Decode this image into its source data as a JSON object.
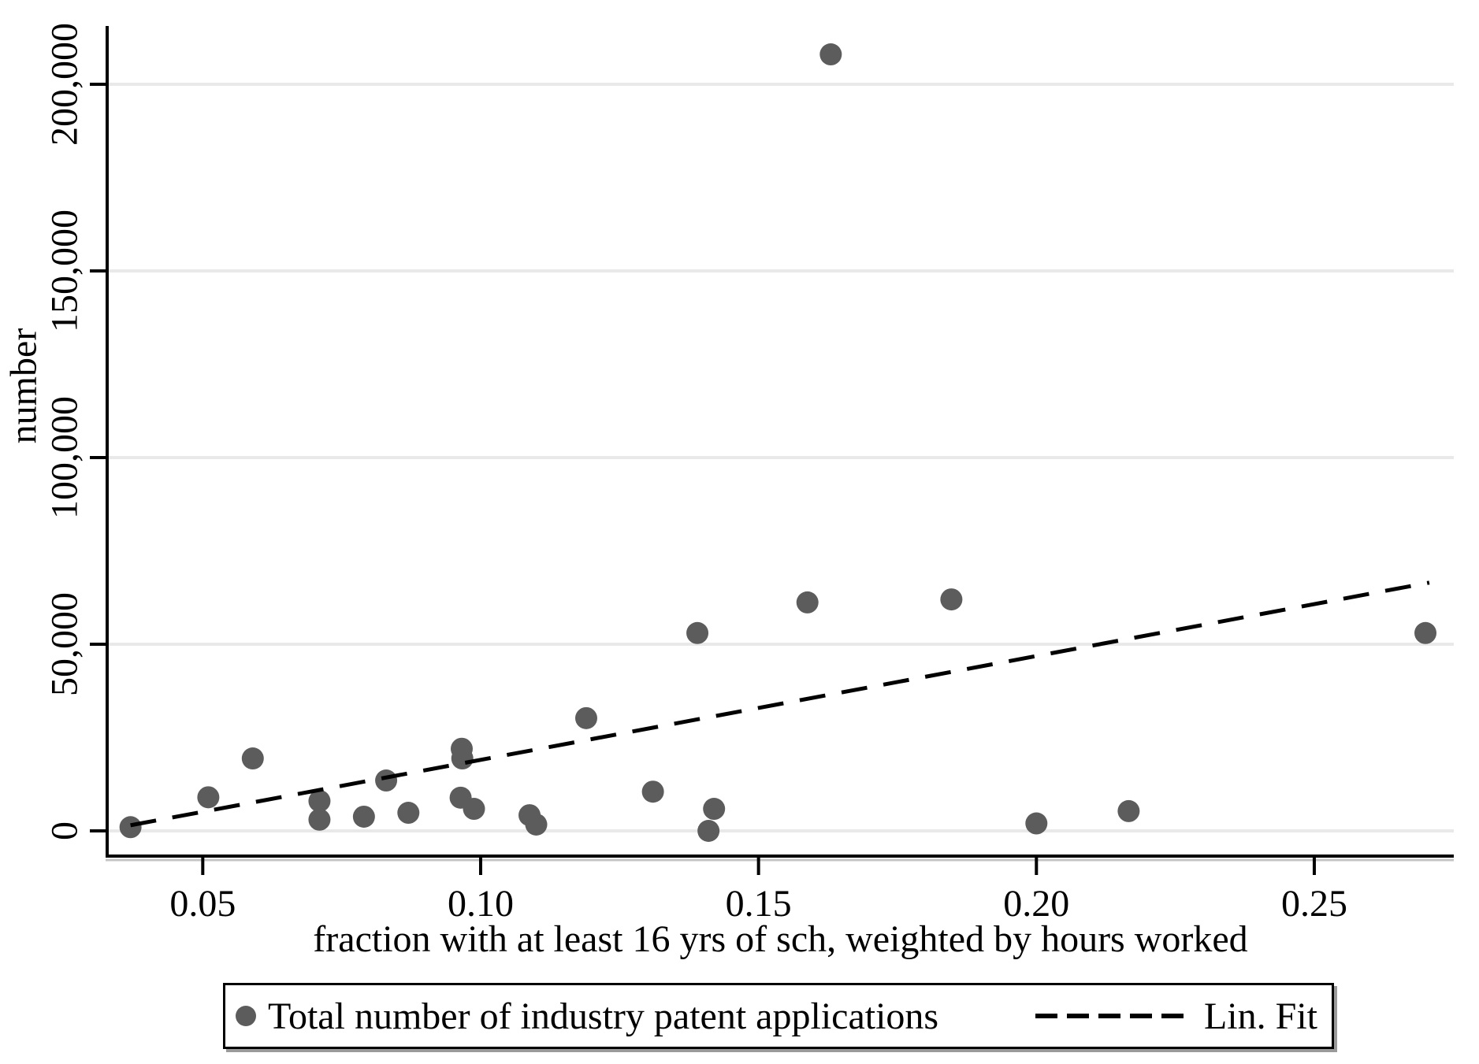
{
  "figure": {
    "background": "#ffffff",
    "marker_color": "#5c5c5c",
    "grid_color": "#e9e9e9",
    "axis_color": "#000000",
    "text_color": "#000000",
    "axis_shadow_color": "#c4c4c4"
  },
  "chart_data": {
    "type": "scatter",
    "title": "",
    "xlabel": "fraction with at least 16 yrs of sch, weighted by hours worked",
    "ylabel": "number",
    "xlim": [
      0.0328,
      0.2751
    ],
    "ylim": [
      -6750,
      215600
    ],
    "grid": "horizontal-y",
    "legend_position": "bottom-outside",
    "x_ticks": {
      "values": [
        0.05,
        0.1,
        0.15,
        0.2,
        0.25
      ],
      "labels": [
        "0.05",
        "0.10",
        "0.15",
        "0.20",
        "0.25"
      ]
    },
    "y_ticks": {
      "values": [
        0,
        50000,
        100000,
        150000,
        200000
      ],
      "labels": [
        "0",
        "50,000",
        "100,000",
        "150,000",
        "200,000"
      ]
    },
    "series": [
      {
        "name": "Total number of industry patent applications",
        "type": "scatter",
        "color": "#5c5c5c",
        "marker_radius": 14,
        "points": [
          [
            0.037,
            1000
          ],
          [
            0.051,
            9000
          ],
          [
            0.059,
            19400
          ],
          [
            0.071,
            8000
          ],
          [
            0.071,
            3000
          ],
          [
            0.079,
            3800
          ],
          [
            0.083,
            13500
          ],
          [
            0.087,
            4850
          ],
          [
            0.0964,
            8900
          ],
          [
            0.0966,
            22000
          ],
          [
            0.0967,
            19400
          ],
          [
            0.0988,
            5900
          ],
          [
            0.1088,
            4200
          ],
          [
            0.11,
            1700
          ],
          [
            0.119,
            30200
          ],
          [
            0.131,
            10500
          ],
          [
            0.139,
            53000
          ],
          [
            0.141,
            0
          ],
          [
            0.142,
            5900
          ],
          [
            0.1588,
            61200
          ],
          [
            0.163,
            208000
          ],
          [
            0.1847,
            62000
          ],
          [
            0.2,
            2000
          ],
          [
            0.2166,
            5300
          ],
          [
            0.27,
            53000
          ]
        ]
      },
      {
        "name": "Lin. Fit",
        "type": "line",
        "style": "dashed",
        "color": "#000000",
        "points": [
          [
            0.037,
            1500
          ],
          [
            0.2707,
            66500
          ]
        ]
      }
    ]
  },
  "legend": {
    "items": [
      {
        "label": "Total number of industry patent applications",
        "marker": "dot"
      },
      {
        "label": "Lin. Fit",
        "marker": "dashed-line"
      }
    ]
  }
}
